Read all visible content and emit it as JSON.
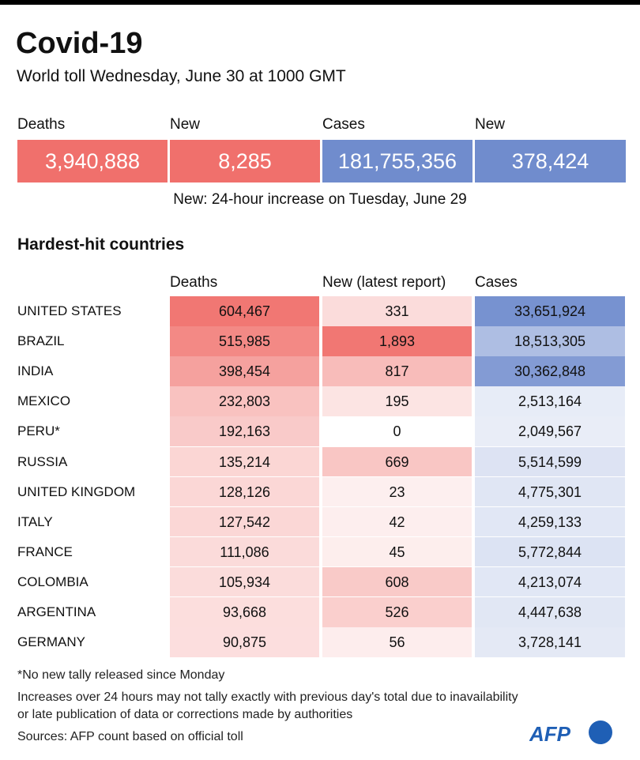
{
  "header": {
    "title": "Covid-19",
    "subtitle": "World toll Wednesday, June 30 at 1000 GMT"
  },
  "summary": [
    {
      "label": "Deaths",
      "value": "3,940,888"
    },
    {
      "label": "New",
      "value": "8,285"
    },
    {
      "label": "Cases",
      "value": "181,755,356"
    },
    {
      "label": "New",
      "value": "378,424"
    }
  ],
  "note": "New: 24-hour increase on Tuesday, June 29",
  "table": {
    "title": "Hardest-hit countries",
    "columns": [
      "Deaths",
      "New (latest report)",
      "Cases"
    ],
    "rows": [
      [
        "UNITED STATES",
        "604,467",
        "331",
        "33,651,924"
      ],
      [
        "BRAZIL",
        "515,985",
        "1,893",
        "18,513,305"
      ],
      [
        "INDIA",
        "398,454",
        "817",
        "30,362,848"
      ],
      [
        "MEXICO",
        "232,803",
        "195",
        "2,513,164"
      ],
      [
        "PERU*",
        "192,163",
        "0",
        "2,049,567"
      ],
      [
        "RUSSIA",
        "135,214",
        "669",
        "5,514,599"
      ],
      [
        "UNITED KINGDOM",
        "128,126",
        "23",
        "4,775,301"
      ],
      [
        "ITALY",
        "127,542",
        "42",
        "4,259,133"
      ],
      [
        "FRANCE",
        "111,086",
        "45",
        "5,772,844"
      ],
      [
        "COLOMBIA",
        "105,934",
        "608",
        "4,213,074"
      ],
      [
        "ARGENTINA",
        "93,668",
        "526",
        "4,447,638"
      ],
      [
        "GERMANY",
        "90,875",
        "56",
        "3,728,141"
      ]
    ]
  },
  "footnotes": [
    "*No new tally released since Monday",
    "Increases over 24 hours may not tally exactly with previous day's total due to inavailability",
    "or late publication of data or corrections made by authorities",
    "Sources: AFP count based on official toll"
  ],
  "logo": "AFP"
}
